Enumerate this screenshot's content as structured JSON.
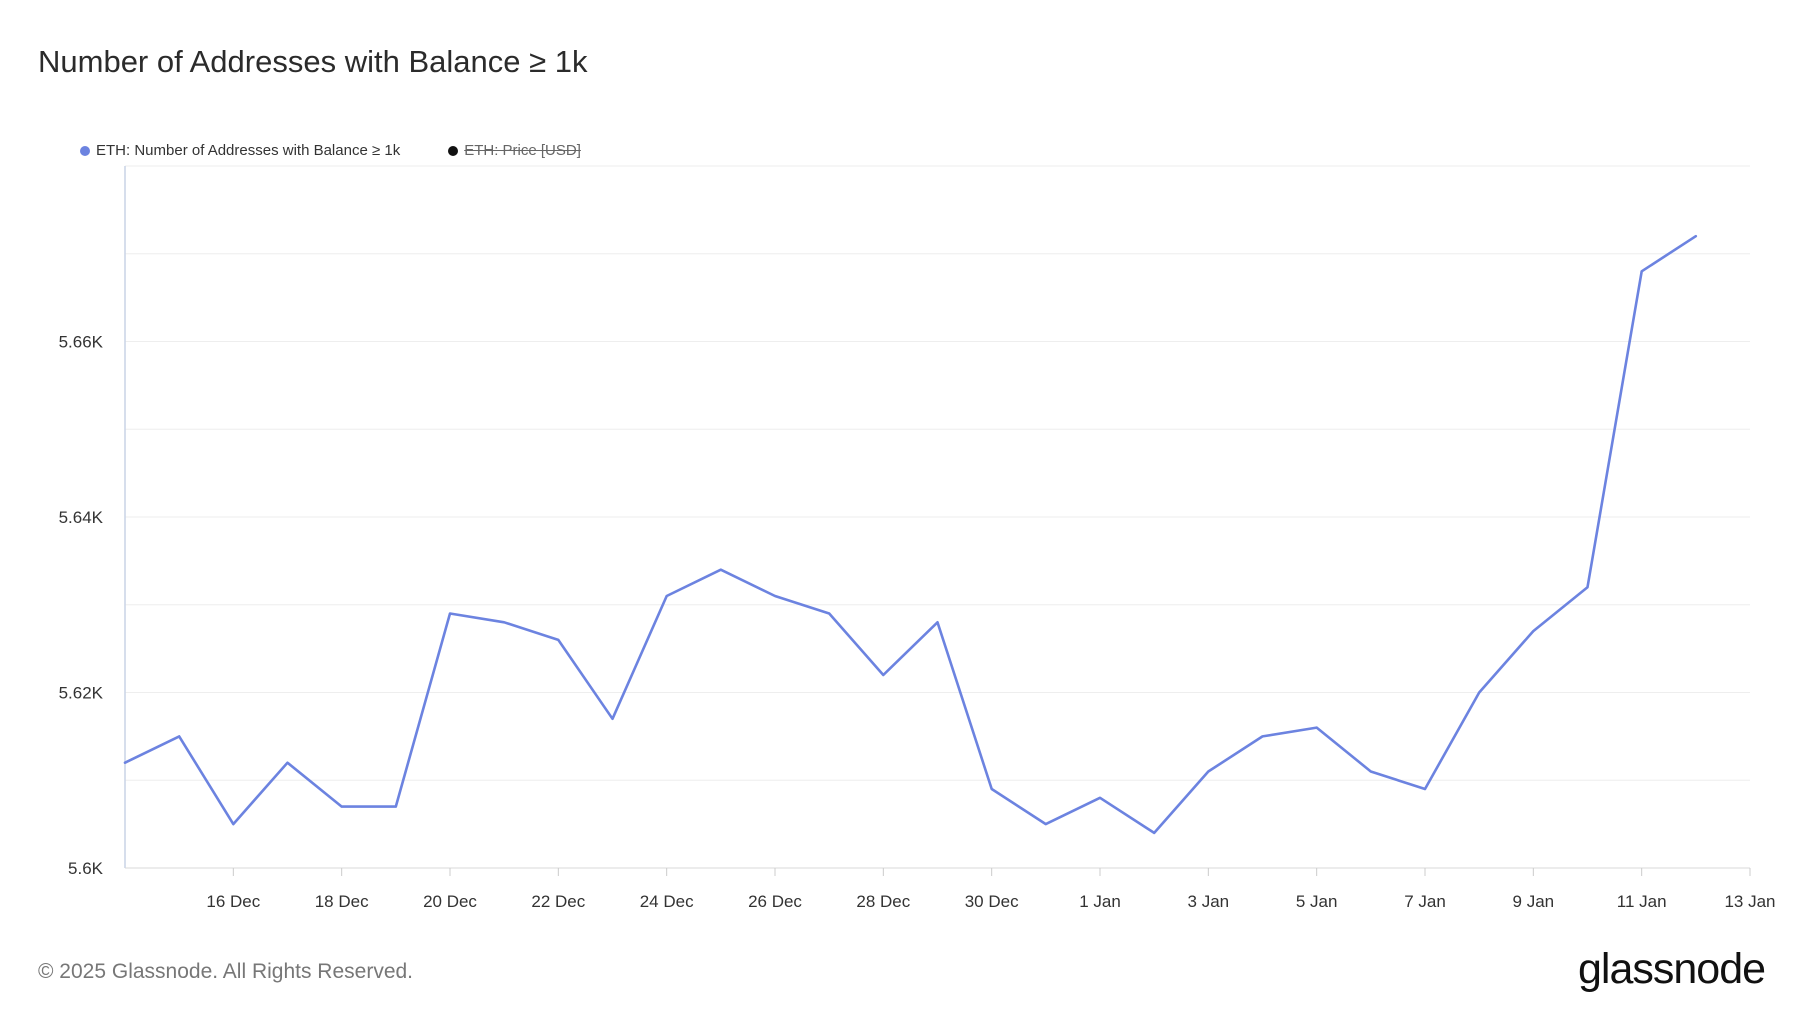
{
  "title": "Number of Addresses with Balance ≥ 1k",
  "legend": [
    {
      "label": "ETH: Number of Addresses with Balance ≥ 1k",
      "color": "#6c83e0",
      "hidden": false
    },
    {
      "label": "ETH: Price [USD]",
      "color": "#111111",
      "hidden": true
    }
  ],
  "footer": "© 2025 Glassnode. All Rights Reserved.",
  "logo": "glassnode",
  "chart_data": {
    "type": "line",
    "title": "Number of Addresses with Balance ≥ 1k",
    "x_ticks": [
      "16 Dec",
      "18 Dec",
      "20 Dec",
      "22 Dec",
      "24 Dec",
      "26 Dec",
      "28 Dec",
      "30 Dec",
      "1 Jan",
      "3 Jan",
      "5 Jan",
      "7 Jan",
      "9 Jan",
      "11 Jan",
      "13 Jan"
    ],
    "y_ticks": [
      "5.6K",
      "5.62K",
      "5.64K",
      "5.66K"
    ],
    "y_tick_values": [
      5600,
      5620,
      5640,
      5660
    ],
    "ylim": [
      5600,
      5680
    ],
    "x_start": "2024-12-14",
    "x_end": "2025-01-13",
    "grid": true,
    "series": [
      {
        "name": "ETH: Number of Addresses with Balance ≥ 1k",
        "color": "#6c83e0",
        "x": [
          "2024-12-14",
          "2024-12-15",
          "2024-12-16",
          "2024-12-17",
          "2024-12-18",
          "2024-12-19",
          "2024-12-20",
          "2024-12-21",
          "2024-12-22",
          "2024-12-23",
          "2024-12-24",
          "2024-12-25",
          "2024-12-26",
          "2024-12-27",
          "2024-12-28",
          "2024-12-29",
          "2024-12-30",
          "2024-12-31",
          "2025-01-01",
          "2025-01-02",
          "2025-01-03",
          "2025-01-04",
          "2025-01-05",
          "2025-01-06",
          "2025-01-07",
          "2025-01-08",
          "2025-01-09",
          "2025-01-10",
          "2025-01-11",
          "2025-01-12"
        ],
        "values": [
          5612,
          5615,
          5605,
          5612,
          5607,
          5607,
          5629,
          5628,
          5626,
          5617,
          5631,
          5634,
          5631,
          5629,
          5622,
          5628,
          5609,
          5605,
          5608,
          5604,
          5611,
          5615,
          5616,
          5611,
          5609,
          5620,
          5627,
          5632,
          5668,
          5672
        ]
      }
    ]
  }
}
